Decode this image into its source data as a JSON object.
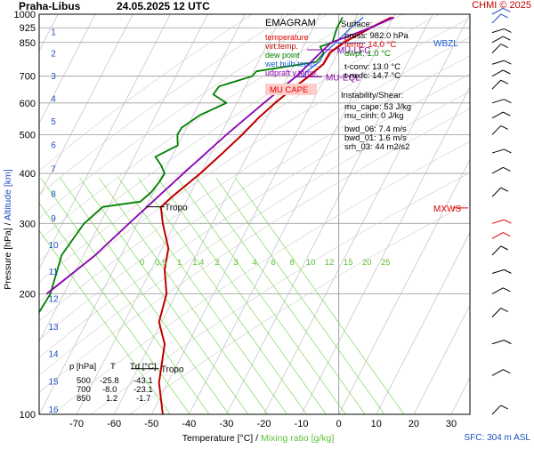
{
  "header": {
    "station": "Praha-Libus",
    "datetime": "24.05.2025 12 UTC",
    "credit": "CHMI © 2025"
  },
  "footer": {
    "sfc": "SFC: 304 m ASL"
  },
  "colors": {
    "temperature": "#e00000",
    "virt_temp": "#a00000",
    "dew_point": "#008000",
    "wet_bulb": "#1e5fd8",
    "updraft": "#8a00b0",
    "mixing": "#7ed957",
    "altitude": "#1f4fbf",
    "grid": "#9a9a9a"
  },
  "chart_data": {
    "type": "line",
    "title": "EMAGRAM",
    "xlabel": "Temperature [°C]",
    "xlabel_sep": " / ",
    "xlabel2": "Mixing ratio [g/kg]",
    "ylabel": "Pressure [hPa]",
    "ylabel_sep": " / ",
    "ylabel2": "Altitude [km]",
    "xlim": [
      -80,
      35
    ],
    "ylim": [
      1000,
      100
    ],
    "y_scale": "log",
    "x_ticks": [
      -70,
      -60,
      -50,
      -40,
      -30,
      -20,
      -10,
      0,
      10,
      20,
      30
    ],
    "y_ticks": [
      100,
      200,
      300,
      400,
      500,
      600,
      700,
      850,
      925,
      1000
    ],
    "altitude_ticks_km": [
      {
        "km": 1,
        "p": 906
      },
      {
        "km": 2,
        "p": 800
      },
      {
        "km": 3,
        "p": 703
      },
      {
        "km": 4,
        "p": 617
      },
      {
        "km": 5,
        "p": 541
      },
      {
        "km": 6,
        "p": 473
      },
      {
        "km": 7,
        "p": 412
      },
      {
        "km": 8,
        "p": 357
      },
      {
        "km": 9,
        "p": 310
      },
      {
        "km": 10,
        "p": 266
      },
      {
        "km": 11,
        "p": 228
      },
      {
        "km": 12,
        "p": 195
      },
      {
        "km": 13,
        "p": 166
      },
      {
        "km": 14,
        "p": 142
      },
      {
        "km": 15,
        "p": 121
      },
      {
        "km": 16,
        "p": 103
      }
    ],
    "mixing_ratio_labels": [
      "0",
      "0.5",
      "1",
      "1.4",
      "2",
      "3",
      "4",
      "6",
      "8",
      "10",
      "12",
      "15",
      "20",
      "25"
    ],
    "legend": {
      "title": "EMAGRAM",
      "items": [
        {
          "label": "temperature",
          "color": "#e00000"
        },
        {
          "label": "virt.temp.",
          "color": "#c00000"
        },
        {
          "label": "dew point",
          "color": "#008000"
        },
        {
          "label": "wet bulb temp.",
          "color": "#1e5fd8"
        },
        {
          "label": "udpraft v.temp.",
          "color": "#8a00b0"
        }
      ],
      "badge": "MU CAPE"
    },
    "info": {
      "surface_title": "Surface:",
      "surface": [
        "press: 982.0 hPa",
        "temp: 14.0 °C",
        "dwpt: 1.0 °C"
      ],
      "conv": [
        "t-conv: 13.0 °C",
        "t-mxfc: 14.7 °C"
      ],
      "instability_title": "Instability/Shear:",
      "instability": [
        "mu_cape: 53 J/kg",
        "mu_cinh: 0 J/kg",
        "bwd_06: 7.4 m/s",
        "bwd_01: 1.6 m/s",
        "srh_03: 44 m2/s2"
      ]
    },
    "table": {
      "headers": [
        "p [hPa]",
        "T",
        "Td [°C]"
      ],
      "rows": [
        [
          "500",
          "-25.8",
          "-43.1"
        ],
        [
          "700",
          "-8.0",
          "-23.1"
        ],
        [
          "850",
          "1.2",
          "-1.7"
        ]
      ]
    },
    "annotations": {
      "tropo_upper": "Tropo",
      "tropo_lower": "Tropo",
      "mu_eql": "MU-EQL",
      "mu_lfc": "MU-LFC",
      "wbzl": "WBZL",
      "mxws": "MXWS"
    },
    "series": [
      {
        "name": "temperature",
        "points": [
          [
            982,
            14.0
          ],
          [
            925,
            8.5
          ],
          [
            850,
            1.2
          ],
          [
            800,
            -2.5
          ],
          [
            750,
            -4.2
          ],
          [
            700,
            -8.0
          ],
          [
            650,
            -12.5
          ],
          [
            600,
            -17.0
          ],
          [
            550,
            -21.5
          ],
          [
            500,
            -25.8
          ],
          [
            450,
            -31.0
          ],
          [
            400,
            -37.0
          ],
          [
            350,
            -44.5
          ],
          [
            330,
            -47.5
          ],
          [
            300,
            -47.0
          ],
          [
            260,
            -45.5
          ],
          [
            230,
            -46.5
          ],
          [
            200,
            -46.0
          ],
          [
            170,
            -48.0
          ],
          [
            150,
            -46.5
          ],
          [
            120,
            -48.0
          ],
          [
            100,
            -47.0
          ]
        ]
      },
      {
        "name": "virt.temp.",
        "points": [
          [
            982,
            14.3
          ],
          [
            925,
            8.8
          ],
          [
            850,
            1.6
          ],
          [
            800,
            -2.2
          ],
          [
            750,
            -4.0
          ],
          [
            700,
            -7.8
          ],
          [
            650,
            -12.3
          ],
          [
            600,
            -16.9
          ],
          [
            550,
            -21.4
          ],
          [
            500,
            -25.7
          ],
          [
            450,
            -31.0
          ],
          [
            400,
            -37.0
          ],
          [
            350,
            -44.5
          ],
          [
            330,
            -47.5
          ],
          [
            300,
            -47.0
          ],
          [
            260,
            -45.5
          ],
          [
            230,
            -46.5
          ],
          [
            200,
            -46.0
          ],
          [
            170,
            -48.0
          ],
          [
            150,
            -46.5
          ],
          [
            120,
            -48.0
          ],
          [
            100,
            -47.0
          ]
        ]
      },
      {
        "name": "dew point",
        "points": [
          [
            982,
            1.0
          ],
          [
            925,
            -0.5
          ],
          [
            850,
            -1.7
          ],
          [
            830,
            -5.0
          ],
          [
            800,
            -4.0
          ],
          [
            760,
            -6.0
          ],
          [
            720,
            -22.0
          ],
          [
            700,
            -23.1
          ],
          [
            660,
            -32.0
          ],
          [
            630,
            -33.5
          ],
          [
            600,
            -30.0
          ],
          [
            560,
            -37.0
          ],
          [
            520,
            -42.0
          ],
          [
            500,
            -43.1
          ],
          [
            470,
            -43.0
          ],
          [
            440,
            -49.0
          ],
          [
            420,
            -47.5
          ],
          [
            400,
            -46.5
          ],
          [
            380,
            -48.0
          ],
          [
            360,
            -50.0
          ],
          [
            340,
            -53.0
          ],
          [
            330,
            -63.0
          ],
          [
            300,
            -68.0
          ],
          [
            250,
            -74.0
          ],
          [
            200,
            -77.0
          ],
          [
            180,
            -80.0
          ]
        ]
      },
      {
        "name": "wet bulb temp.",
        "points": [
          [
            982,
            6.5
          ],
          [
            925,
            3.2
          ],
          [
            850,
            -0.8
          ],
          [
            800,
            -3.8
          ],
          [
            760,
            -5.2
          ],
          [
            720,
            -8.5
          ],
          [
            700,
            -9.5
          ]
        ]
      },
      {
        "name": "udpraft v.temp.",
        "points": [
          [
            982,
            14.7
          ],
          [
            925,
            8.5
          ],
          [
            850,
            -2.0
          ],
          [
            800,
            -5.0
          ],
          [
            750,
            -8.0
          ],
          [
            700,
            -11.3
          ],
          [
            650,
            -15.5
          ],
          [
            600,
            -20.0
          ],
          [
            500,
            -30.0
          ],
          [
            400,
            -41.5
          ],
          [
            300,
            -56.0
          ],
          [
            250,
            -65.0
          ],
          [
            200,
            -78.0
          ]
        ]
      }
    ]
  }
}
